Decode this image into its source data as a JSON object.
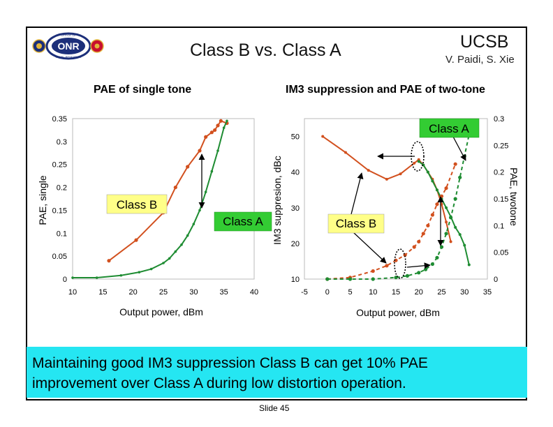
{
  "header": {
    "title": "Class B vs. Class A",
    "org": "UCSB",
    "authors": "V. Paidi, S. Xie"
  },
  "logos": {
    "onr_text": "ONR",
    "onr_ring_top": "OFFICE OF",
    "onr_ring_bottom": "NAVAL RESEARCH",
    "colors": {
      "navy": "#1c2f7a",
      "red": "#c8102e",
      "gold": "#e2b53b"
    }
  },
  "left_panel": {
    "subtitle": "PAE of single tone"
  },
  "right_panel": {
    "subtitle": "IM3 suppression and PAE of two-tone"
  },
  "callouts": {
    "class_b_left": "Class B",
    "class_a_left": "Class A",
    "class_a_right": "Class A",
    "class_b_right": "Class B"
  },
  "footer": {
    "line1": "Maintaining good IM3 suppression Class B can get 10% PAE",
    "line2": "improvement over Class A during low distortion operation.",
    "slide_number": "Slide 45",
    "box_color": "#25e6f2"
  },
  "colors": {
    "orange": "#d2501e",
    "green": "#1e8c32",
    "callout_yellow": "#ffff88",
    "callout_green": "#33cc33"
  },
  "chart_data": [
    {
      "type": "line",
      "xlabel": "Output power, dBm",
      "ylabel": "PAE, single",
      "xlim": [
        10,
        40
      ],
      "ylim": [
        0,
        0.35
      ],
      "xticks": [
        "10",
        "15",
        "20",
        "25",
        "30",
        "35",
        "40"
      ],
      "yticks": [
        "0",
        "0.05",
        "0.1",
        "0.15",
        "0.2",
        "0.25",
        "0.3",
        "0.35"
      ],
      "series": [
        {
          "color": "#d2501e",
          "x": [
            16,
            20.5,
            25,
            27,
            29,
            31,
            32,
            33,
            33.5,
            34,
            34.5,
            35.5
          ],
          "y": [
            0.04,
            0.085,
            0.145,
            0.2,
            0.245,
            0.28,
            0.31,
            0.32,
            0.325,
            0.335,
            0.345,
            0.34
          ]
        },
        {
          "color": "#1e8c32",
          "x": [
            10,
            14,
            18,
            21,
            23,
            25,
            26,
            27,
            28,
            29,
            30,
            31,
            32,
            33,
            34,
            35,
            35.5
          ],
          "y": [
            0.003,
            0.003,
            0.008,
            0.015,
            0.022,
            0.035,
            0.045,
            0.06,
            0.075,
            0.095,
            0.12,
            0.15,
            0.19,
            0.235,
            0.28,
            0.33,
            0.345
          ]
        }
      ]
    },
    {
      "type": "line",
      "xlabel": "Output power, dBm",
      "ylabel": "IM3 suppresion, dBc",
      "ylabel_right": "PAE, twotone",
      "xlim": [
        -5,
        35
      ],
      "ylim": [
        10,
        55
      ],
      "ylim_right": [
        0,
        0.3
      ],
      "xticks": [
        "-5",
        "0",
        "5",
        "10",
        "15",
        "20",
        "25",
        "30",
        "35"
      ],
      "yticks": [
        "10",
        "20",
        "30",
        "40",
        "50"
      ],
      "yticks_right": [
        "0",
        "0.05",
        "0.1",
        "0.15",
        "0.2",
        "0.25",
        "0.3"
      ],
      "series": [
        {
          "color": "#d2501e",
          "axis": "left",
          "style": "solid",
          "x": [
            -1,
            4,
            9,
            13,
            16,
            19,
            20,
            21,
            22,
            23,
            24,
            25,
            26,
            27
          ],
          "y": [
            50,
            45.5,
            40.5,
            38,
            39.5,
            42.5,
            43.5,
            42,
            40,
            38,
            35,
            31,
            26,
            20.5
          ]
        },
        {
          "color": "#1e8c32",
          "axis": "left",
          "style": "solid",
          "x": [
            20,
            21,
            22,
            23,
            24,
            25,
            26,
            27,
            28,
            29,
            30,
            31
          ],
          "y": [
            43,
            42,
            40,
            37.5,
            35,
            32.5,
            30,
            27.5,
            24.5,
            22.5,
            19.5,
            14
          ]
        },
        {
          "color": "#d2501e",
          "axis": "right",
          "style": "dashed",
          "x": [
            0,
            5,
            10,
            13,
            15,
            17,
            19,
            20,
            21,
            22,
            23,
            24,
            25,
            26,
            28
          ],
          "y": [
            0.0,
            0.003,
            0.015,
            0.025,
            0.035,
            0.045,
            0.06,
            0.07,
            0.085,
            0.1,
            0.12,
            0.14,
            0.155,
            0.17,
            0.215
          ]
        },
        {
          "color": "#1e8c32",
          "axis": "right",
          "style": "dashed",
          "x": [
            0,
            5,
            10,
            15,
            17.5,
            20,
            21.5,
            23,
            24,
            25,
            26,
            27,
            28,
            29,
            30,
            31,
            31.5
          ],
          "y": [
            0.0,
            0.0,
            0.0,
            0.003,
            0.006,
            0.012,
            0.018,
            0.028,
            0.04,
            0.06,
            0.085,
            0.115,
            0.15,
            0.19,
            0.23,
            0.27,
            0.29
          ]
        }
      ]
    }
  ]
}
